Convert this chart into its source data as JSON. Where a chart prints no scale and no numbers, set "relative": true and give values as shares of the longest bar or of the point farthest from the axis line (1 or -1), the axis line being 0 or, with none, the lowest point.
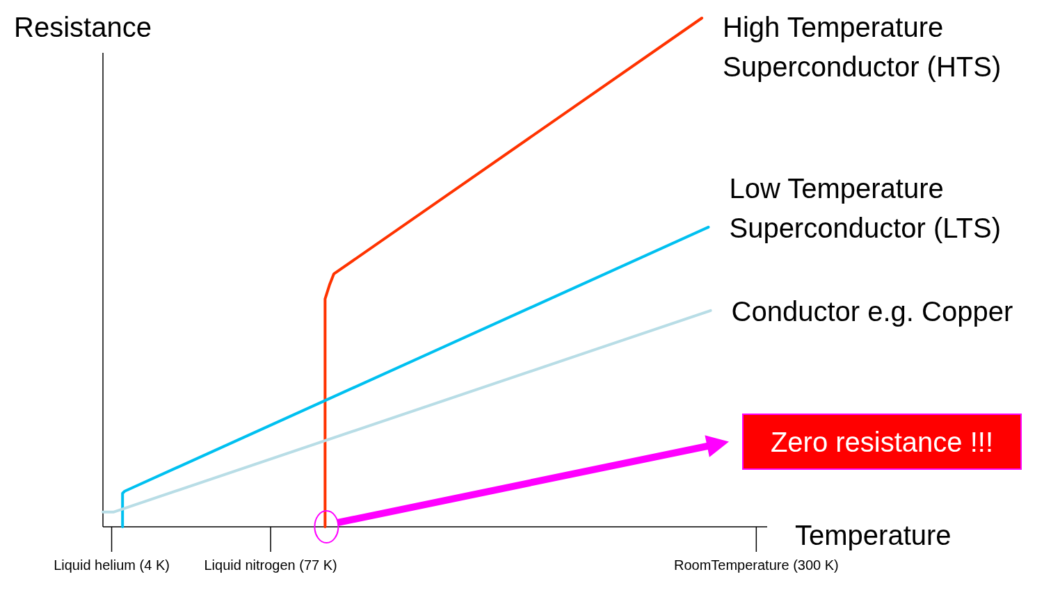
{
  "chart_data": {
    "type": "line",
    "relative": true,
    "xlabel": "Temperature",
    "ylabel": "Resistance",
    "xlim": [
      0,
      305
    ],
    "xticks": [
      {
        "value": 4,
        "label": "Liquid helium (4 K)"
      },
      {
        "value": 77,
        "label": "Liquid nitrogen (77 K)"
      },
      {
        "value": 300,
        "label": "RoomTemperature (300 K)"
      }
    ],
    "grid": false,
    "series": [
      {
        "name": "High Temperature Superconductor (HTS)",
        "color": "#ff3300",
        "x": [
          102,
          102,
          104,
          106,
          275
        ],
        "values": [
          0,
          0.448,
          0.475,
          0.497,
          1
        ]
      },
      {
        "name": "Low Temperature Superconductor (LTS)",
        "color": "#00c0f0",
        "x": [
          9,
          9,
          10,
          278
        ],
        "values": [
          0,
          0.066,
          0.07,
          0.589
        ]
      },
      {
        "name": "Conductor e.g. Copper",
        "color": "#b8dde6",
        "x": [
          0,
          4.8,
          279
        ],
        "values": [
          0.029,
          0.029,
          0.425
        ]
      }
    ],
    "annotations": [
      "Zero resistance !!!"
    ]
  }
}
